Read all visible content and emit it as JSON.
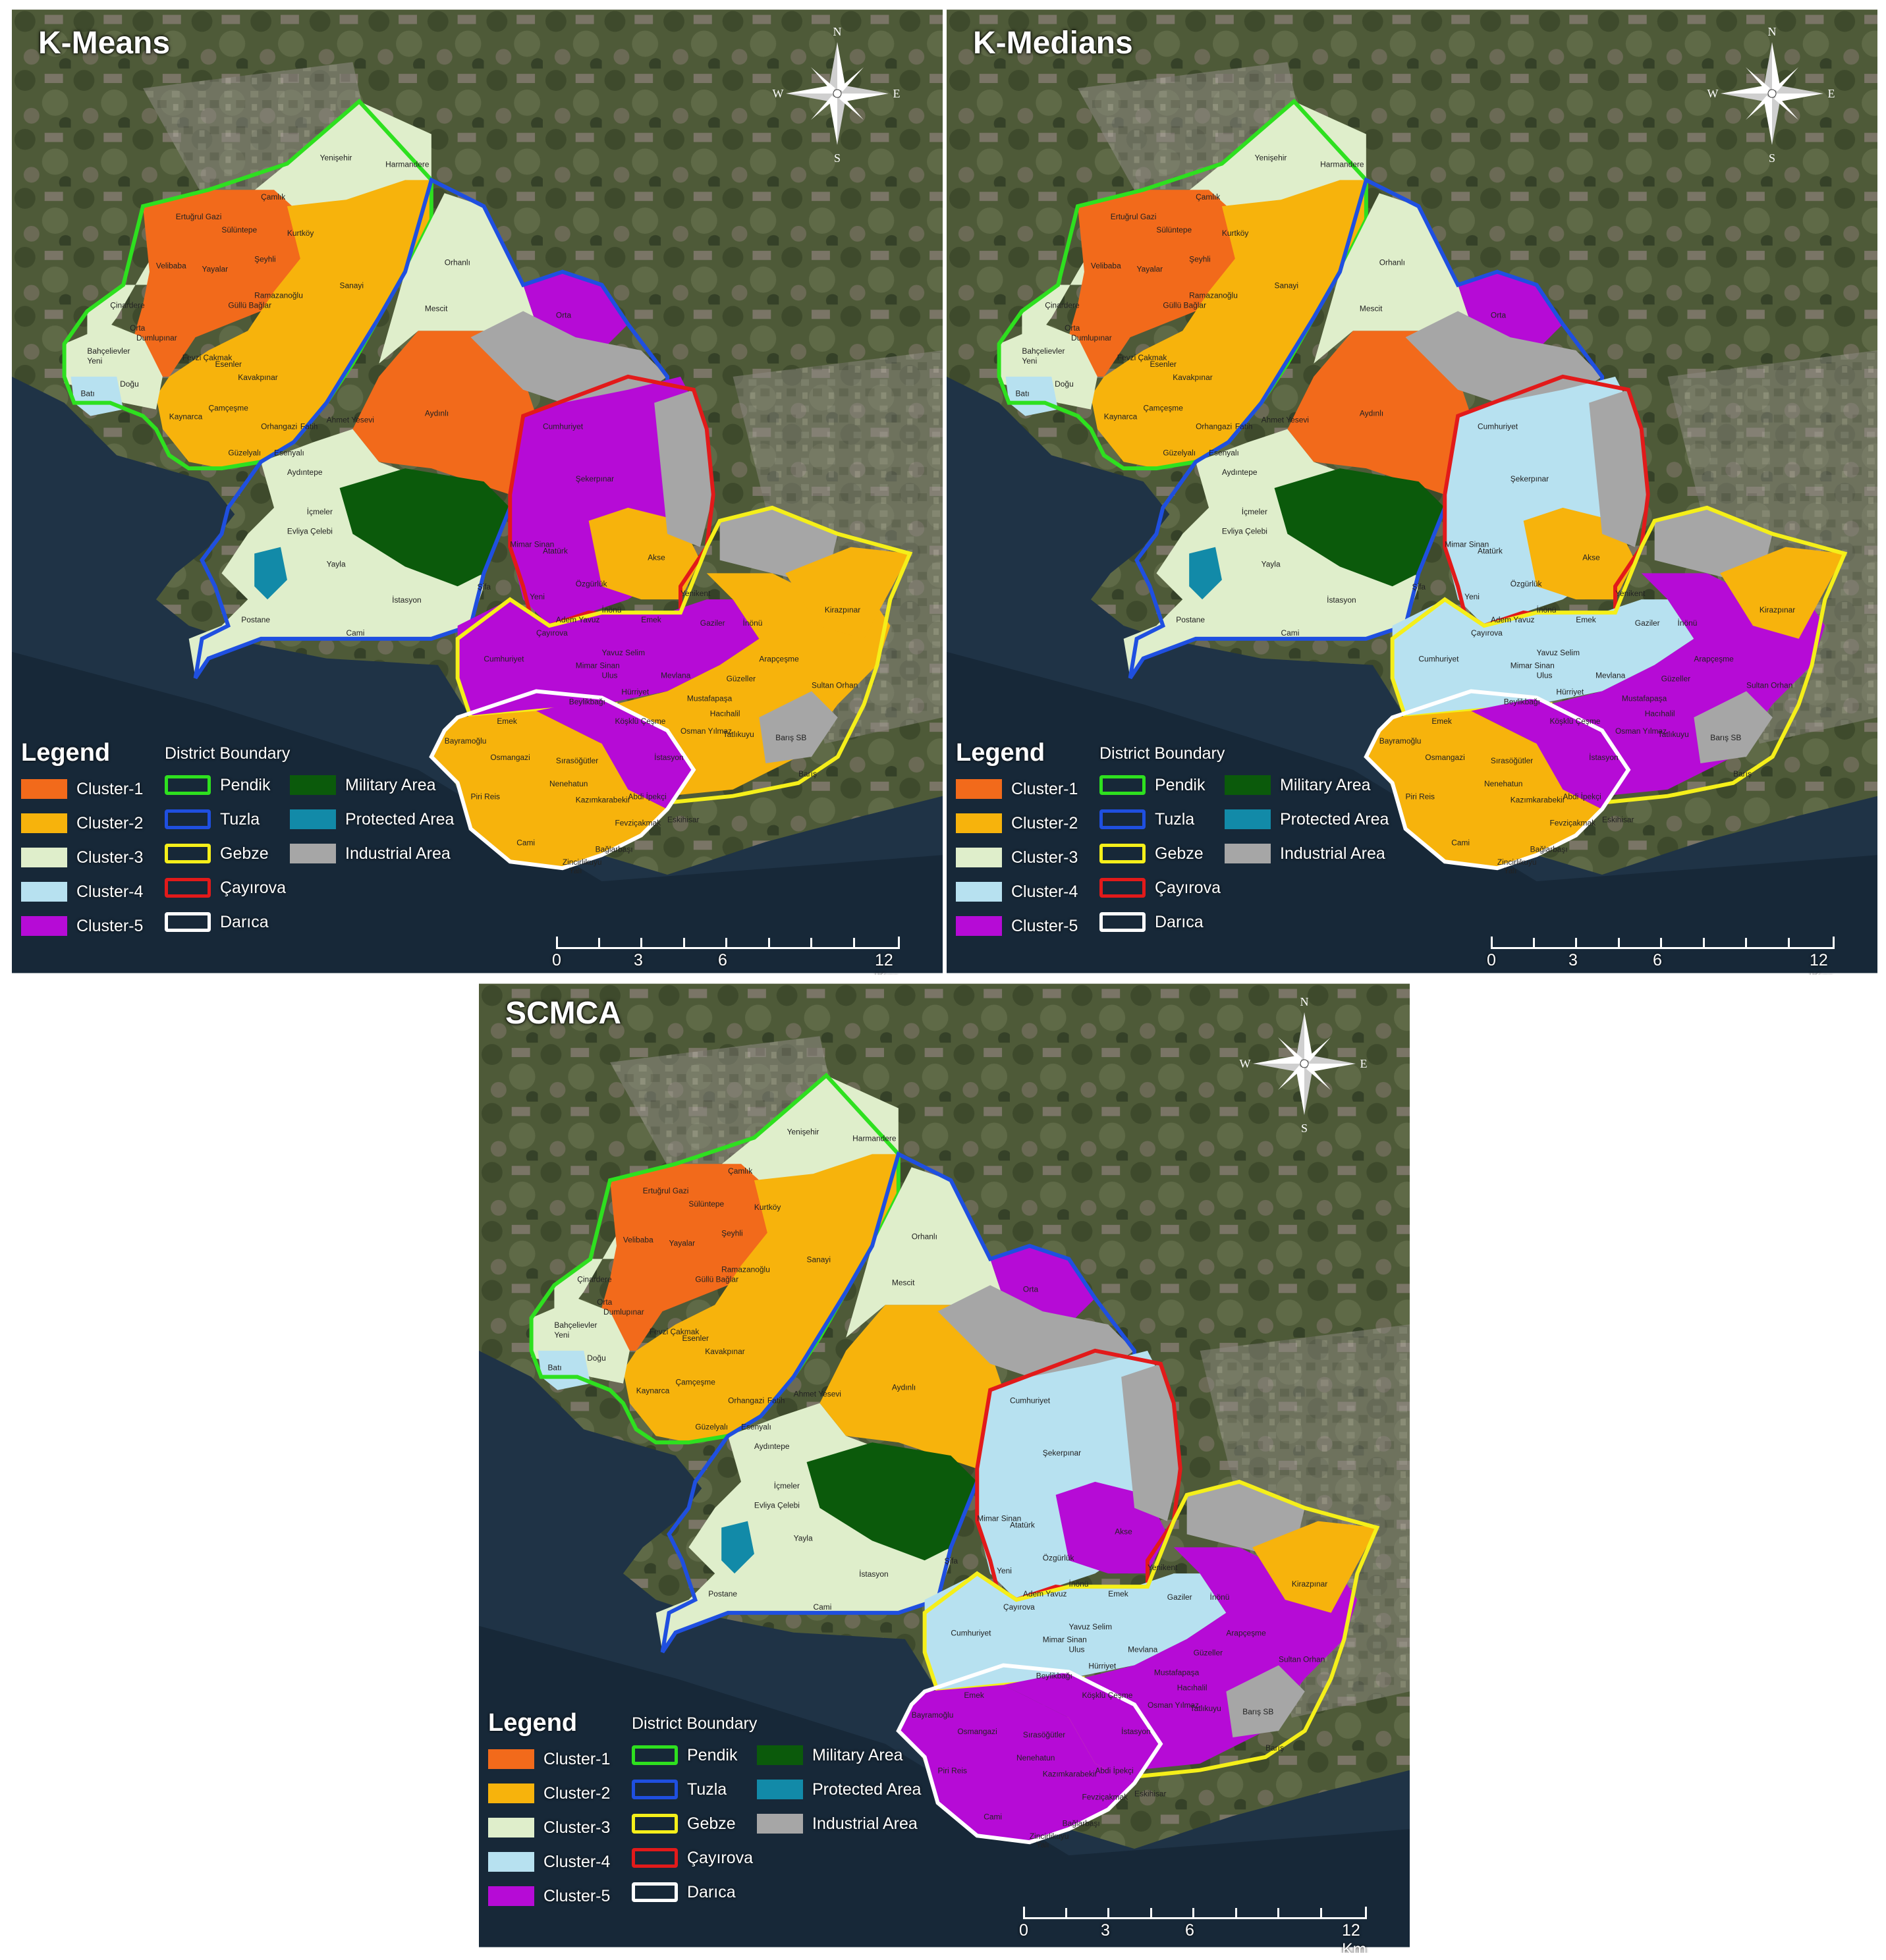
{
  "panels": [
    {
      "title": "K-Means",
      "colors": {
        "pendik_a": "#f26a1b",
        "pendik_b": "#f7b30c",
        "pendik_c": "#dfeecb",
        "tuzla_a": "#f26a1b",
        "tuzla_b": "#dfeecb",
        "cay_a": "#b60bd6",
        "cay_b": "#f7b30c",
        "gebze_a": "#b60bd6",
        "gebze_b": "#f7b30c",
        "darica_a": "#f7b30c",
        "darica_b": "#b60bd6"
      }
    },
    {
      "title": "K-Medians",
      "colors": {
        "pendik_a": "#f26a1b",
        "pendik_b": "#f7b30c",
        "pendik_c": "#dfeecb",
        "tuzla_a": "#f26a1b",
        "tuzla_b": "#dfeecb",
        "cay_a": "#b7e1f0",
        "cay_b": "#f7b30c",
        "gebze_a": "#b7e1f0",
        "gebze_b": "#b60bd6",
        "darica_a": "#f7b30c",
        "darica_b": "#b60bd6"
      }
    },
    {
      "title": "SCMCA",
      "colors": {
        "pendik_a": "#f26a1b",
        "pendik_b": "#f7b30c",
        "pendik_c": "#dfeecb",
        "tuzla_a": "#f7b30c",
        "tuzla_b": "#dfeecb",
        "cay_a": "#b7e1f0",
        "cay_b": "#b60bd6",
        "gebze_a": "#b7e1f0",
        "gebze_b": "#b60bd6",
        "darica_a": "#b60bd6",
        "darica_b": "#b60bd6"
      }
    }
  ],
  "compass": {
    "n": "N",
    "s": "S",
    "e": "E",
    "w": "W"
  },
  "legend": {
    "title": "Legend",
    "district_title": "District Boundary",
    "clusters": [
      {
        "label": "Cluster-1",
        "color": "#f26a1b"
      },
      {
        "label": "Cluster-2",
        "color": "#f7b30c"
      },
      {
        "label": "Cluster-3",
        "color": "#dfeecb"
      },
      {
        "label": "Cluster-4",
        "color": "#b7e1f0"
      },
      {
        "label": "Cluster-5",
        "color": "#b60bd6"
      }
    ],
    "districts": [
      {
        "label": "Pendik",
        "color": "#2ee01f"
      },
      {
        "label": "Tuzla",
        "color": "#1f4fe0"
      },
      {
        "label": "Gebze",
        "color": "#f5ef1a"
      },
      {
        "label": "Çayırova",
        "color": "#e21a1a"
      },
      {
        "label": "Darıca",
        "color": "#ffffff"
      }
    ],
    "areas": [
      {
        "label": "Military Area",
        "color": "#0b5a0b"
      },
      {
        "label": "Protected Area",
        "color": "#128aa8"
      },
      {
        "label": "Industrial Area",
        "color": "#a6a6a6"
      }
    ]
  },
  "scale": {
    "labels": [
      "0",
      "3",
      "6",
      "12 Km"
    ]
  },
  "neighborhoods": {
    "pendik": [
      "Yenişehir",
      "Harmandere",
      "Çamlık",
      "Ertuğrul Gazi",
      "Sülüntepe",
      "Kurtköy",
      "Şeyhli",
      "Velibaba",
      "Yayalar",
      "Ramazanoğlu",
      "Sanayi",
      "Güllü Bağlar",
      "Çinardere",
      "Orta",
      "Dumlupınar",
      "Fevzi Çakmak",
      "Esenler",
      "Kavakpınar",
      "Bahçelievler",
      "Yeni",
      "Doğu",
      "Batı",
      "Kaynarca",
      "Çamçeşme",
      "Orhangazi",
      "Fatih",
      "Ahmet Yesevi",
      "Güzelyalı",
      "Esenyalı"
    ],
    "tuzla": [
      "Orhanlı",
      "Mescit",
      "Orta",
      "Aydınlı",
      "Aydıntepe",
      "İçmeler",
      "Evliya Çelebi",
      "Yayla",
      "İstasyon",
      "Postane",
      "Cami",
      "Şifa"
    ],
    "cayirova": [
      "Cumhuriyet",
      "Şekerpınar",
      "Mimar Sinan",
      "Atatürk",
      "Akse",
      "Özgürlük",
      "İnönü",
      "Yeni",
      "Emek",
      "Adem Yavuz",
      "Çayırova",
      "Yenikent"
    ],
    "gebze": [
      "Kirazpınar",
      "Gaziler",
      "İnönü",
      "Arapçeşme",
      "Cumhuriyet",
      "Yavuz Selim",
      "Mimar Sinan",
      "Ulus",
      "Mevlana",
      "Güzeller",
      "Sultan Orhan",
      "Hürriyet",
      "Mustafapaşa",
      "Beylikbağı",
      "Hacıhalil",
      "Köşklü Çeşme",
      "Osman Yılmaz",
      "Tatlıkuyu",
      "Barış SB",
      "Barış"
    ],
    "darica": [
      "Emek",
      "Bayramoğlu",
      "Osmangazi",
      "Sırasöğütler",
      "Piri Reis",
      "Nenehatun",
      "Kazımkarabekir",
      "Abdi İpekçi",
      "Fevziçakmak",
      "Eskihisar",
      "Cami",
      "Bağlarbaşı",
      "Zincirlikuyu",
      "Yalı",
      "İstasyon"
    ]
  }
}
